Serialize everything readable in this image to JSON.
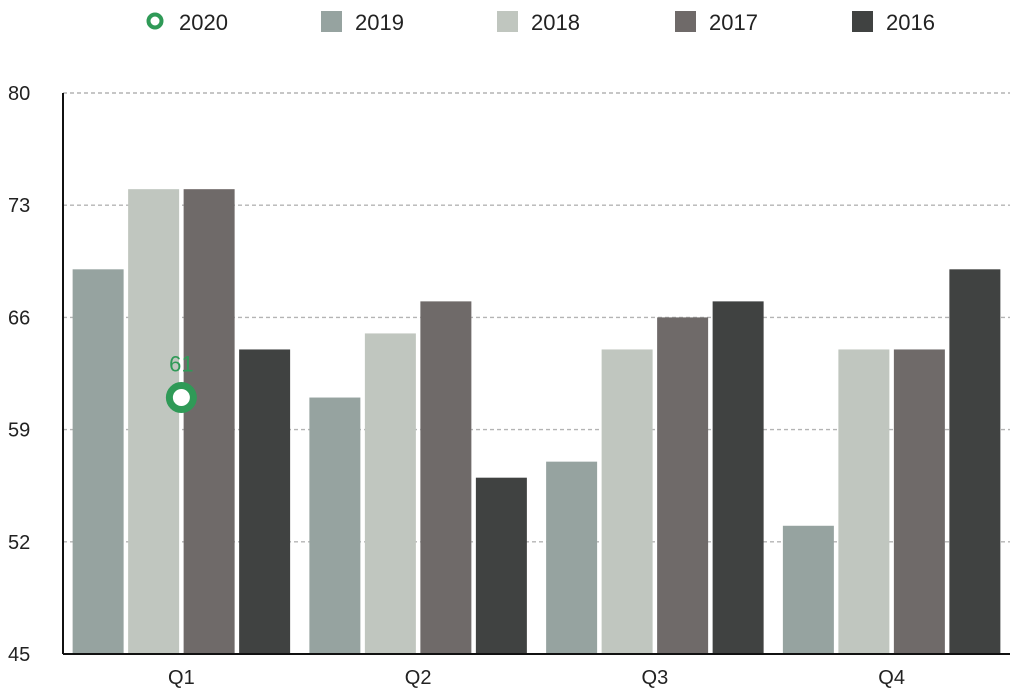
{
  "chart_data": {
    "type": "bar",
    "categories": [
      "Q1",
      "Q2",
      "Q3",
      "Q4"
    ],
    "series": [
      {
        "name": "2019",
        "values": [
          69,
          61,
          57,
          53
        ],
        "color": "#96a3a0"
      },
      {
        "name": "2018",
        "values": [
          74,
          65,
          64,
          64
        ],
        "color": "#c0c6bf"
      },
      {
        "name": "2017",
        "values": [
          74,
          67,
          66,
          64
        ],
        "color": "#6f6a69"
      },
      {
        "name": "2016",
        "values": [
          64,
          56,
          67,
          69
        ],
        "color": "#404241"
      }
    ],
    "overlay_series": {
      "name": "2020",
      "type": "scatter",
      "category": "Q1",
      "value": 61,
      "label": "61",
      "color": "#2f9a57"
    },
    "legend": [
      "2020",
      "2019",
      "2018",
      "2017",
      "2016"
    ],
    "legend_position": "top",
    "ylim": [
      45,
      80
    ],
    "yticks": [
      45,
      52,
      59,
      66,
      73,
      80
    ],
    "grid": "horizontal-dashed",
    "title": "",
    "xlabel": "",
    "ylabel": ""
  }
}
